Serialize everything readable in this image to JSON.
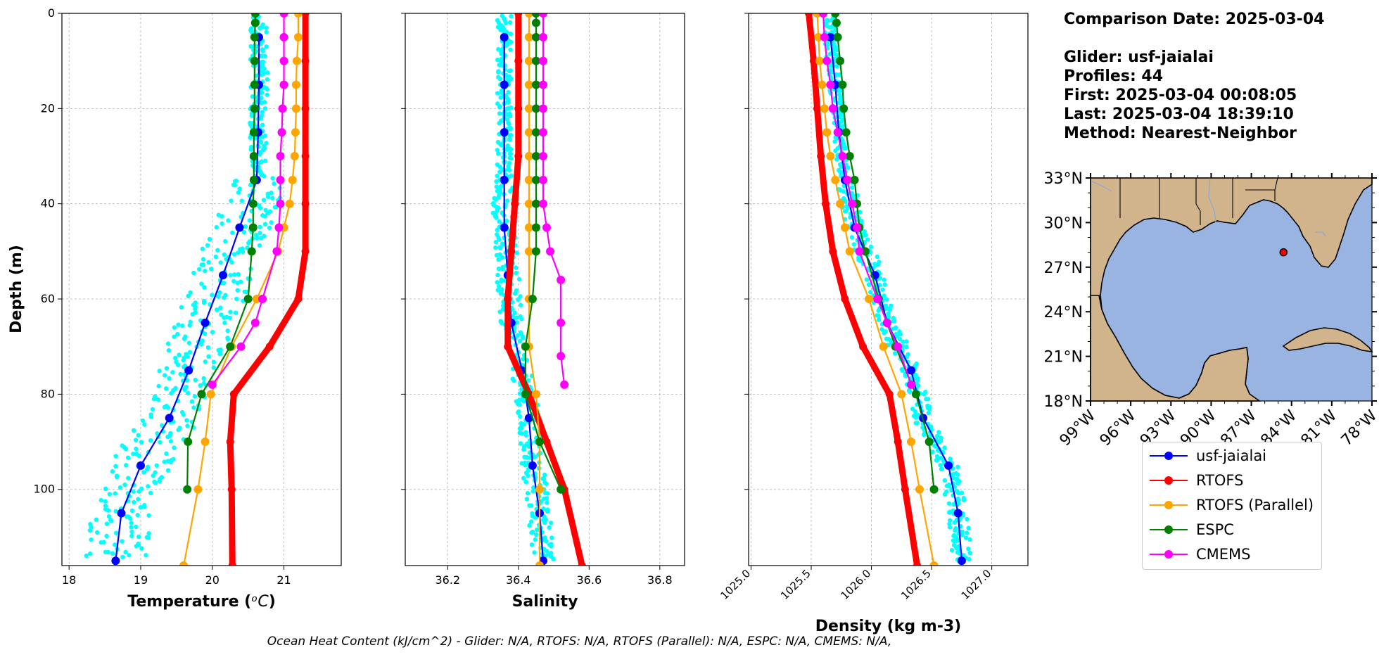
{
  "info": {
    "comparison": "Comparison Date: 2025-03-04",
    "glider": "Glider: usf-jaialai",
    "profiles": "Profiles: 44",
    "first": "First: 2025-03-04 00:08:05",
    "last": "Last: 2025-03-04 18:39:10",
    "method": "Method: Nearest-Neighbor"
  },
  "footer": "Ocean Heat Content (kJ/cm^2) - Glider: N/A,  RTOFS: N/A,  RTOFS (Parallel): N/A,  ESPC: N/A,  CMEMS: N/A,",
  "legend": [
    {
      "name": "usf-jaialai",
      "color": "#0000ff"
    },
    {
      "name": "RTOFS",
      "color": "#ff0000"
    },
    {
      "name": "RTOFS (Parallel)",
      "color": "#ffa500"
    },
    {
      "name": "ESPC",
      "color": "#008000"
    },
    {
      "name": "CMEMS",
      "color": "#ff00ff"
    }
  ],
  "chart_data": [
    {
      "type": "line",
      "xlabel": "Temperature ($^oC$)",
      "ylabel": "Depth (m)",
      "xlim": [
        17.9,
        21.8
      ],
      "ylim": [
        116,
        0
      ],
      "xticks": [
        18,
        19,
        20,
        21
      ],
      "yticks": [
        0,
        20,
        40,
        60,
        80,
        100
      ],
      "grid": true,
      "series": [
        {
          "name": "usf-jaialai",
          "color": "#0000ff",
          "depth": [
            5,
            15,
            25,
            35,
            45,
            55,
            65,
            75,
            85,
            95,
            105,
            115
          ],
          "values": [
            20.65,
            20.65,
            20.64,
            20.62,
            20.38,
            20.15,
            19.9,
            19.67,
            19.4,
            19.0,
            18.73,
            18.65
          ]
        },
        {
          "name": "RTOFS",
          "color": "#ff0000",
          "depth": [
            0,
            10,
            20,
            30,
            40,
            50,
            60,
            70,
            80,
            90,
            100,
            116
          ],
          "values": [
            21.3,
            21.3,
            21.3,
            21.3,
            21.3,
            21.3,
            21.2,
            20.8,
            20.3,
            20.25,
            20.27,
            20.28
          ]
        },
        {
          "name": "RTOFS (Parallel)",
          "color": "#ffa500",
          "depth": [
            0,
            5,
            10,
            15,
            20,
            25,
            30,
            35,
            40,
            45,
            50,
            60,
            70,
            80,
            90,
            100,
            116
          ],
          "values": [
            21.2,
            21.2,
            21.18,
            21.17,
            21.17,
            21.16,
            21.15,
            21.12,
            21.08,
            21.0,
            20.92,
            20.62,
            20.27,
            19.98,
            19.9,
            19.8,
            19.6
          ]
        },
        {
          "name": "ESPC",
          "color": "#008000",
          "depth": [
            0,
            2,
            5,
            10,
            15,
            20,
            25,
            30,
            35,
            40,
            45,
            50,
            60,
            70,
            80,
            90,
            100
          ],
          "values": [
            20.6,
            20.6,
            20.59,
            20.59,
            20.59,
            20.59,
            20.58,
            20.58,
            20.58,
            20.57,
            20.57,
            20.55,
            20.5,
            20.25,
            19.85,
            19.66,
            19.65
          ]
        },
        {
          "name": "CMEMS",
          "color": "#ff00ff",
          "depth": [
            0,
            5,
            10,
            15,
            20,
            25,
            30,
            35,
            40,
            45,
            50,
            60,
            65,
            70,
            78
          ],
          "values": [
            21.0,
            21.0,
            21.0,
            21.0,
            20.98,
            20.97,
            20.95,
            20.95,
            20.95,
            20.93,
            20.9,
            20.7,
            20.6,
            20.4,
            20.0
          ]
        }
      ]
    },
    {
      "type": "line",
      "xlabel": "Salinity",
      "xlim": [
        36.08,
        36.87
      ],
      "ylim": [
        116,
        0
      ],
      "xticks": [
        36.2,
        36.4,
        36.6,
        36.8
      ],
      "yticks": [
        0,
        20,
        40,
        60,
        80,
        100
      ],
      "grid": true,
      "series": [
        {
          "name": "usf-jaialai",
          "color": "#0000ff",
          "depth": [
            5,
            15,
            25,
            35,
            45,
            55,
            65,
            75,
            85,
            95,
            105,
            115
          ],
          "values": [
            36.36,
            36.36,
            36.36,
            36.36,
            36.36,
            36.37,
            36.38,
            36.41,
            36.43,
            36.44,
            36.46,
            36.47
          ]
        },
        {
          "name": "RTOFS",
          "color": "#ff0000",
          "depth": [
            0,
            10,
            20,
            30,
            40,
            50,
            60,
            70,
            80,
            90,
            100,
            116
          ],
          "values": [
            36.4,
            36.4,
            36.4,
            36.4,
            36.39,
            36.38,
            36.37,
            36.37,
            36.43,
            36.48,
            36.53,
            36.58
          ]
        },
        {
          "name": "RTOFS (Parallel)",
          "color": "#ffa500",
          "depth": [
            0,
            5,
            10,
            15,
            20,
            25,
            30,
            35,
            40,
            45,
            50,
            60,
            70,
            80,
            90,
            100,
            116
          ],
          "values": [
            36.43,
            36.43,
            36.43,
            36.43,
            36.43,
            36.43,
            36.43,
            36.43,
            36.43,
            36.43,
            36.43,
            36.43,
            36.43,
            36.45,
            36.46,
            36.46,
            36.46
          ]
        },
        {
          "name": "ESPC",
          "color": "#008000",
          "depth": [
            0,
            2,
            5,
            10,
            15,
            20,
            25,
            30,
            35,
            40,
            45,
            50,
            60,
            70,
            80,
            90,
            100
          ],
          "values": [
            36.45,
            36.45,
            36.45,
            36.45,
            36.45,
            36.45,
            36.45,
            36.45,
            36.45,
            36.45,
            36.45,
            36.45,
            36.44,
            36.42,
            36.42,
            36.46,
            36.52
          ]
        },
        {
          "name": "CMEMS",
          "color": "#ff00ff",
          "depth": [
            0,
            5,
            10,
            15,
            20,
            25,
            30,
            35,
            40,
            45,
            50,
            56,
            65,
            72,
            78
          ],
          "values": [
            36.47,
            36.47,
            36.47,
            36.47,
            36.47,
            36.47,
            36.47,
            36.47,
            36.47,
            36.48,
            36.49,
            36.52,
            36.52,
            36.52,
            36.53
          ]
        }
      ]
    },
    {
      "type": "line",
      "xlabel": "Density (kg m-3)",
      "xlim": [
        1024.98,
        1027.3
      ],
      "ylim": [
        116,
        0
      ],
      "xticks": [
        1025.0,
        1025.5,
        1026.0,
        1026.5,
        1027.0
      ],
      "xtick_labels": [
        "1025.0",
        "1025.5",
        "1026.0",
        "1026.5",
        "1027.0"
      ],
      "yticks": [
        0,
        20,
        40,
        60,
        80,
        100
      ],
      "grid": true,
      "series": [
        {
          "name": "usf-jaialai",
          "color": "#0000ff",
          "depth": [
            5,
            15,
            25,
            35,
            45,
            55,
            65,
            75,
            85,
            95,
            105,
            115
          ],
          "values": [
            1025.66,
            1025.7,
            1025.73,
            1025.78,
            1025.86,
            1026.03,
            1026.13,
            1026.33,
            1026.43,
            1026.64,
            1026.72,
            1026.75
          ]
        },
        {
          "name": "RTOFS",
          "color": "#ff0000",
          "depth": [
            0,
            10,
            20,
            30,
            40,
            50,
            60,
            70,
            80,
            90,
            100,
            116
          ],
          "values": [
            1025.48,
            1025.52,
            1025.55,
            1025.58,
            1025.62,
            1025.68,
            1025.78,
            1025.93,
            1026.15,
            1026.22,
            1026.28,
            1026.38
          ]
        },
        {
          "name": "RTOFS (Parallel)",
          "color": "#ffa500",
          "depth": [
            0,
            5,
            10,
            15,
            20,
            25,
            30,
            35,
            40,
            45,
            50,
            60,
            70,
            80,
            90,
            100,
            116
          ],
          "values": [
            1025.55,
            1025.56,
            1025.57,
            1025.59,
            1025.61,
            1025.63,
            1025.66,
            1025.7,
            1025.74,
            1025.78,
            1025.82,
            1025.98,
            1026.1,
            1026.25,
            1026.33,
            1026.4,
            1026.52
          ]
        },
        {
          "name": "ESPC",
          "color": "#008000",
          "depth": [
            0,
            2,
            5,
            10,
            15,
            20,
            25,
            30,
            35,
            40,
            45,
            50,
            60,
            70,
            80,
            90,
            100
          ],
          "values": [
            1025.7,
            1025.71,
            1025.72,
            1025.74,
            1025.76,
            1025.77,
            1025.79,
            1025.82,
            1025.86,
            1025.88,
            1025.9,
            1025.95,
            1026.06,
            1026.2,
            1026.37,
            1026.48,
            1026.52
          ]
        },
        {
          "name": "CMEMS",
          "color": "#ff00ff",
          "depth": [
            0,
            5,
            10,
            15,
            20,
            25,
            30,
            35,
            40,
            45,
            50,
            60,
            65,
            70,
            78
          ],
          "values": [
            1025.6,
            1025.61,
            1025.63,
            1025.66,
            1025.68,
            1025.72,
            1025.76,
            1025.8,
            1025.84,
            1025.88,
            1025.9,
            1026.05,
            1026.13,
            1026.22,
            1026.33
          ]
        }
      ]
    }
  ],
  "map": {
    "lat_ticks": [
      "33°N",
      "30°N",
      "27°N",
      "24°N",
      "21°N",
      "18°N"
    ],
    "lon_ticks": [
      "99°W",
      "96°W",
      "93°W",
      "90°W",
      "87°W",
      "84°W",
      "81°W",
      "78°W"
    ],
    "lon_range": [
      -99,
      -78
    ],
    "lat_range": [
      18,
      33
    ],
    "glider_position": {
      "lon": -84.6,
      "lat": 28.0
    },
    "land_color": "#d2b48c",
    "ocean_color": "#99b4e0"
  }
}
